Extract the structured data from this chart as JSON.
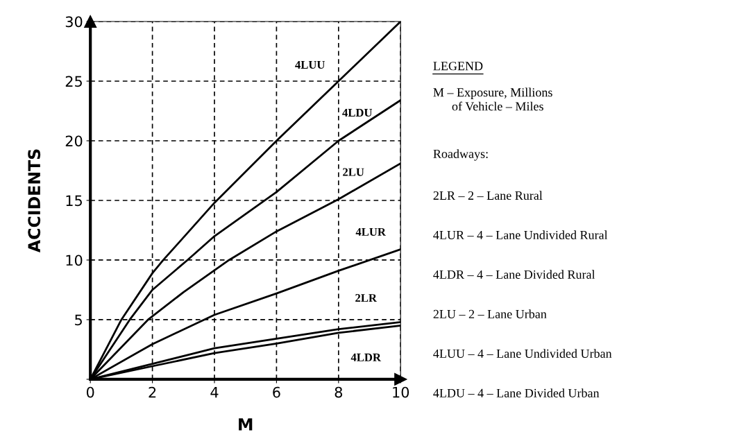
{
  "chart_data": {
    "type": "line",
    "xlabel": "M",
    "ylabel": "ACCIDENTS",
    "series": [
      {
        "name": "4LUU",
        "color": "#000000",
        "x": [
          0,
          1,
          2,
          2.35,
          4,
          6,
          8,
          10
        ],
        "values": [
          0,
          5,
          8.9,
          10,
          14.8,
          20,
          25,
          30
        ]
      },
      {
        "name": "4LDU",
        "color": "#000000",
        "x": [
          0,
          1.27,
          2,
          3.13,
          4,
          6,
          8,
          10
        ],
        "values": [
          0,
          5,
          7.5,
          10,
          12,
          15.7,
          20,
          23.4
        ]
      },
      {
        "name": "2LU",
        "color": "#000000",
        "x": [
          0,
          1.86,
          3,
          4.47,
          6,
          8,
          10
        ],
        "values": [
          0,
          5,
          7.3,
          10,
          12.4,
          15.1,
          18.1
        ]
      },
      {
        "name": "4LUR",
        "color": "#000000",
        "x": [
          0,
          2,
          4,
          6,
          8,
          10
        ],
        "values": [
          0,
          2.95,
          5.4,
          7.2,
          9.1,
          10.9
        ]
      },
      {
        "name": "2LR",
        "color": "#000000",
        "x": [
          0,
          2,
          4,
          6,
          8,
          10
        ],
        "values": [
          0,
          1.3,
          2.6,
          3.4,
          4.2,
          4.8
        ]
      },
      {
        "name": "4LDR",
        "color": "#000000",
        "x": [
          0,
          2,
          4,
          6,
          8,
          10
        ],
        "values": [
          0,
          1.1,
          2.2,
          3.0,
          3.9,
          4.5
        ]
      }
    ],
    "xlim": [
      0,
      10
    ],
    "ylim": [
      0,
      30
    ],
    "xticks": [
      0,
      2,
      4,
      6,
      8,
      10
    ],
    "yticks": [
      {
        "value": 0,
        "label": null
      },
      5,
      10,
      15,
      20,
      25,
      30
    ],
    "grid": true,
    "legend": false,
    "marker": "none",
    "line_style": "solid",
    "annotations": [
      "LEGEND",
      "M – Exposure, Millions\n      of Vehicle – Miles",
      "Roadways:",
      "2LR – 2 – Lane Rural",
      "4LUR – 4 – Lane Undivided Rural",
      "4LDR – 4 – Lane Divided Rural",
      "2LU – 2 – Lane Urban",
      "4LUU – 4 – Lane Undivided Urban",
      "4LDU – 4 – Lane Divided Urban"
    ]
  }
}
